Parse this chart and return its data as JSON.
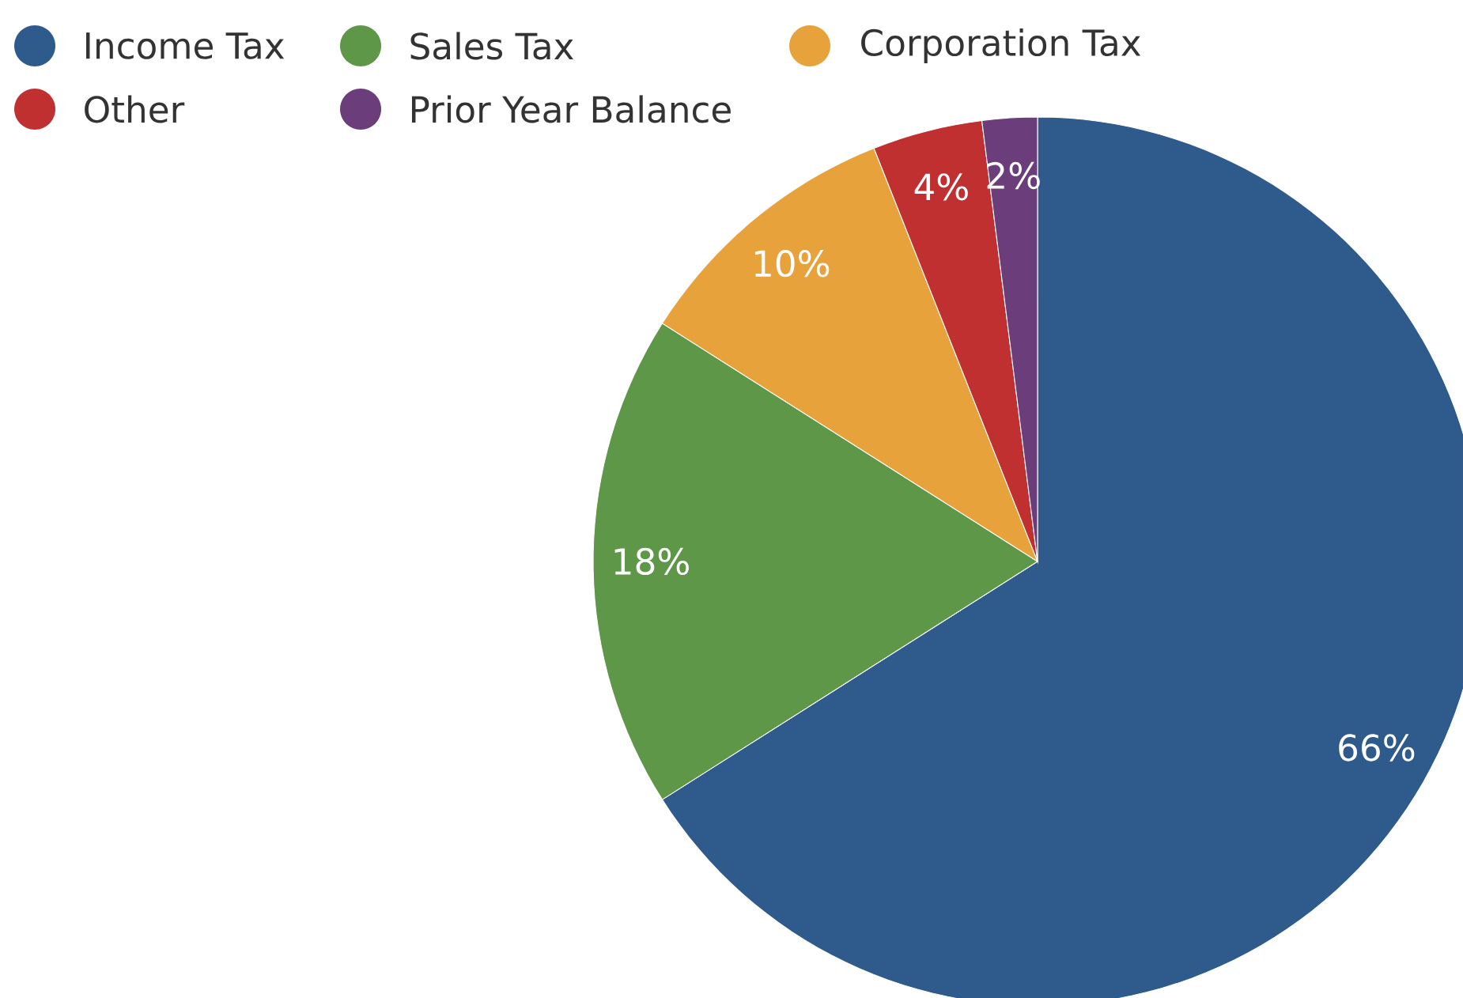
{
  "chart_data": {
    "type": "pie",
    "categories": [
      "Income Tax",
      "Sales Tax",
      "Corporation Tax",
      "Other",
      "Prior Year Balance"
    ],
    "values": [
      66,
      18,
      10,
      4,
      2
    ],
    "value_labels": [
      "66%",
      "18%",
      "10%",
      "4%",
      "2%"
    ],
    "colors": [
      "#2e5a8c",
      "#5e9748",
      "#e8a23c",
      "#c03030",
      "#6b3d7a"
    ],
    "legend": "top left"
  }
}
